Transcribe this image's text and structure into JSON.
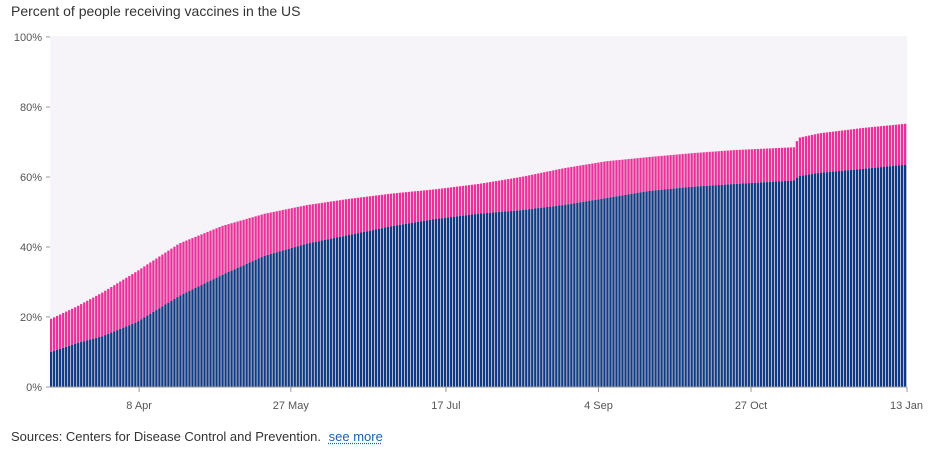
{
  "header": {
    "title": "Percent of people receiving vaccines in the US"
  },
  "footer": {
    "source_text": "Sources: Centers for Disease Control and Prevention.",
    "link_label": "see more"
  },
  "chart_data": {
    "type": "bar",
    "stacked": true,
    "title": "Percent of people receiving vaccines in the US",
    "xlabel": "",
    "ylabel": "",
    "ylim": [
      0,
      100
    ],
    "y_ticks": [
      0,
      20,
      40,
      60,
      80,
      100
    ],
    "y_tick_labels": [
      "0%",
      "20%",
      "40%",
      "60%",
      "80%",
      "100%"
    ],
    "x_tick_labels": [
      "8 Apr",
      "27 May",
      "17 Jul",
      "4 Sep",
      "27 Oct",
      "13 Jan"
    ],
    "x_tick_positions": [
      0.104,
      0.281,
      0.462,
      0.64,
      0.818,
      1.0
    ],
    "num_bars": 285,
    "colors": {
      "fully_vaccinated": "#123a80",
      "partially_vaccinated": "#e8329a",
      "plot_background": "#f6f4f8",
      "axis": "#999999"
    },
    "series_keypoints": [
      {
        "name": "fully_vaccinated",
        "x": [
          0.0,
          0.03,
          0.06,
          0.1,
          0.15,
          0.2,
          0.25,
          0.3,
          0.35,
          0.4,
          0.45,
          0.5,
          0.55,
          0.6,
          0.65,
          0.7,
          0.75,
          0.8,
          0.87,
          0.875,
          0.9,
          0.95,
          1.0
        ],
        "y": [
          10,
          12.5,
          14.5,
          18.5,
          26,
          32,
          37.5,
          41,
          43.5,
          46,
          48,
          49.5,
          50.5,
          52,
          54,
          56,
          57.2,
          58,
          59,
          60.2,
          61.2,
          62.3,
          63.5
        ]
      },
      {
        "name": "total_at_least_one_dose",
        "x": [
          0.0,
          0.03,
          0.06,
          0.1,
          0.15,
          0.2,
          0.25,
          0.3,
          0.35,
          0.4,
          0.45,
          0.5,
          0.55,
          0.6,
          0.65,
          0.7,
          0.75,
          0.8,
          0.87,
          0.875,
          0.9,
          0.95,
          1.0
        ],
        "y": [
          19.5,
          23,
          27,
          33,
          41,
          46,
          49.5,
          52,
          53.8,
          55.3,
          56.5,
          58,
          60,
          62.5,
          64.5,
          65.7,
          66.8,
          67.7,
          68.5,
          71.2,
          72.5,
          74,
          75.2
        ]
      }
    ]
  }
}
